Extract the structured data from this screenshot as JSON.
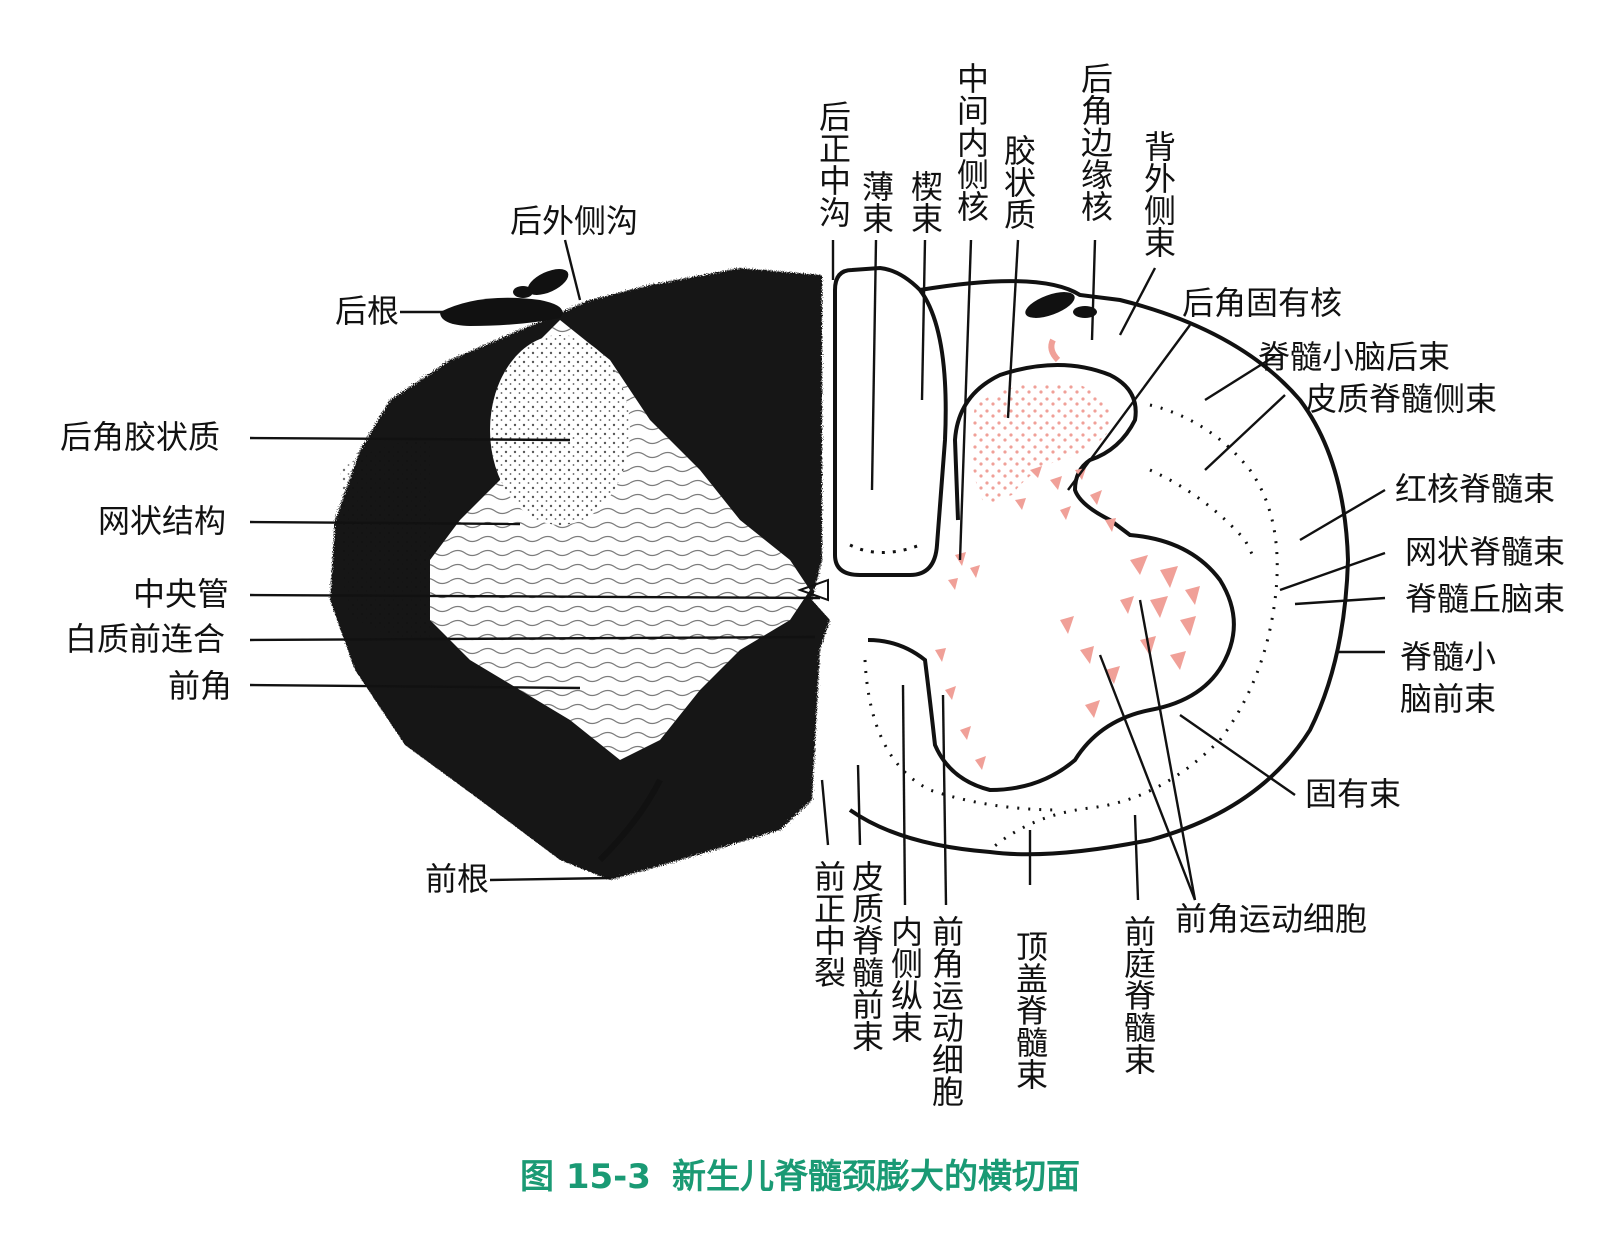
{
  "colors": {
    "ink": "#111111",
    "nucleus": "#f0a098",
    "caption": "#1a9a74"
  },
  "caption": {
    "figure_no": "图 15-3",
    "title": "新生儿脊髓颈膨大的横切面"
  },
  "left_labels": {
    "posterior_lateral_sulcus": "后外侧沟",
    "posterior_root": "后根",
    "substantia_gelatinosa_left": "后角胶状质",
    "reticular_formation": "网状结构",
    "central_canal": "中央管",
    "anterior_white_commissure": "白质前连合",
    "anterior_horn": "前角",
    "anterior_root": "前根"
  },
  "top_labels": {
    "posterior_median_sulcus": "后正中沟",
    "fasciculus_gracilis": "薄束",
    "fasciculus_cuneatus": "楔束",
    "intermediomedial_nucleus": "中间内侧核",
    "substantia_gelatinosa": "胶状质",
    "posteromarginal_nucleus": "后角边缘核",
    "dorsolateral_fasciculus": "背外侧束"
  },
  "right_labels": {
    "nucleus_proprius": "后角固有核",
    "posterior_spinocerebellar_tract": "脊髓小脑后束",
    "lateral_corticospinal_tract": "皮质脊髓侧束",
    "rubrospinal_tract": "红核脊髓束",
    "reticulospinal_tract": "网状脊髓束",
    "spinotectal_tract": "脊髓丘脑束",
    "anterior_spinocerebellar_tract": "脊髓小脑前束",
    "fasciculus_proprius": "固有束",
    "anterior_horn_motor_cells_right": "前角运动细胞"
  },
  "bottom_labels": {
    "anterior_median_fissure": "前正中裂",
    "anterior_corticospinal_tract": "皮质脊髓前束",
    "medial_longitudinal_fasciculus": "内侧纵束",
    "anterior_horn_motor_cells": "前角运动细胞",
    "tectospinal_tract": "顶盖脊髓束",
    "vestibulospinal_tract": "前庭脊髓束"
  }
}
